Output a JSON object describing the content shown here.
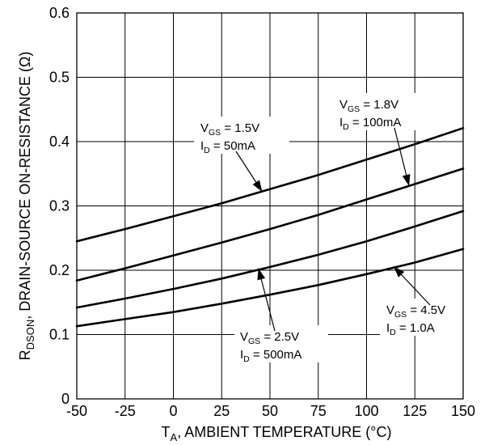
{
  "chart_data": {
    "type": "line",
    "xlabel": {
      "prefix": "T",
      "subscript": "A",
      "rest": ", AMBIENT TEMPERATURE (°C)"
    },
    "ylabel": {
      "prefix": "R",
      "subscript": "DSON",
      "rest": ", DRAIN-SOURCE ON-RESISTANCE (Ω)"
    },
    "xlim": [
      -50,
      150
    ],
    "ylim": [
      0,
      0.6
    ],
    "x_ticks": [
      -50,
      -25,
      0,
      25,
      50,
      75,
      100,
      125,
      150
    ],
    "x_tick_labels": [
      "-50",
      "-25",
      "0",
      "25",
      "50",
      "75",
      "100",
      "125",
      "150"
    ],
    "y_ticks": [
      0,
      0.1,
      0.2,
      0.3,
      0.4,
      0.5,
      0.6
    ],
    "y_tick_labels": [
      "0",
      "0.1",
      "0.2",
      "0.3",
      "0.4",
      "0.5",
      "0.6"
    ],
    "grid": true,
    "legend": "none",
    "line_color": "#000000",
    "series": [
      {
        "id": "vgs15",
        "x": [
          -50,
          -25,
          0,
          25,
          50,
          75,
          100,
          125,
          150
        ],
        "y": [
          0.245,
          0.264,
          0.284,
          0.304,
          0.326,
          0.348,
          0.372,
          0.396,
          0.421
        ]
      },
      {
        "id": "vgs18",
        "x": [
          -50,
          -25,
          0,
          25,
          50,
          75,
          100,
          125,
          150
        ],
        "y": [
          0.184,
          0.203,
          0.223,
          0.243,
          0.264,
          0.286,
          0.31,
          0.334,
          0.358
        ]
      },
      {
        "id": "vgs25",
        "x": [
          -50,
          -25,
          0,
          25,
          50,
          75,
          100,
          125,
          150
        ],
        "y": [
          0.142,
          0.156,
          0.171,
          0.187,
          0.205,
          0.224,
          0.245,
          0.268,
          0.292
        ]
      },
      {
        "id": "vgs45",
        "x": [
          -50,
          -25,
          0,
          25,
          50,
          75,
          100,
          125,
          150
        ],
        "y": [
          0.113,
          0.124,
          0.135,
          0.148,
          0.162,
          0.177,
          0.194,
          0.212,
          0.233
        ]
      }
    ],
    "annotations": [
      {
        "id": "a15",
        "vgs": "1.5V",
        "id_label": "50mA",
        "target": [
          46,
          0.322
        ]
      },
      {
        "id": "a18",
        "vgs": "1.8V",
        "id_label": "100mA",
        "target": [
          122,
          0.331
        ]
      },
      {
        "id": "a25",
        "vgs": "2.5V",
        "id_label": "500mA",
        "target": [
          44,
          0.203
        ]
      },
      {
        "id": "a45",
        "vgs": "4.5V",
        "id_label": "1.0A",
        "target": [
          114,
          0.206
        ]
      }
    ]
  }
}
